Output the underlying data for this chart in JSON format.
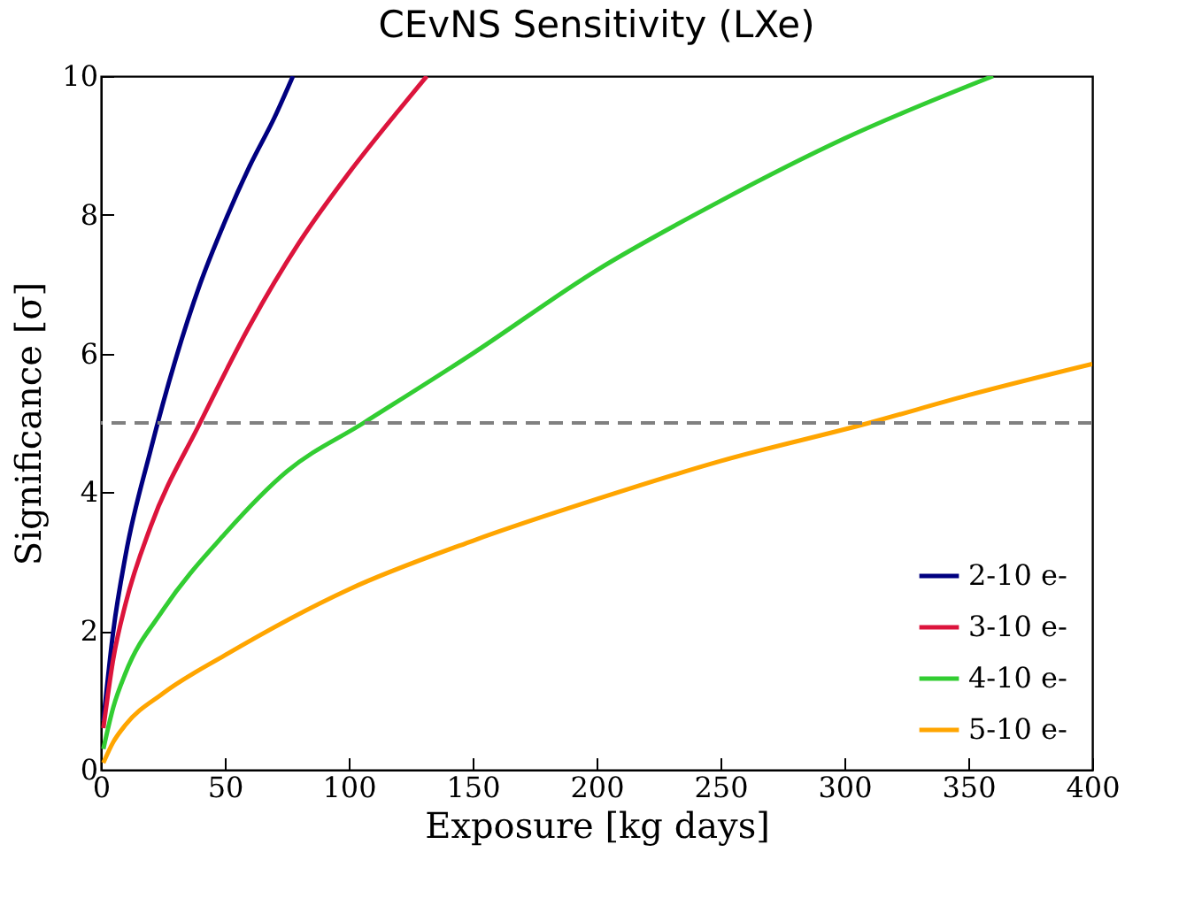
{
  "chart_data": {
    "type": "line",
    "title": "CEvNS Sensitivity (LXe)",
    "xlabel": "Exposure [kg days]",
    "ylabel": "Significance [σ]",
    "xlim": [
      0,
      400
    ],
    "ylim": [
      0,
      10
    ],
    "xticks": [
      0,
      50,
      100,
      150,
      200,
      250,
      300,
      350,
      400
    ],
    "yticks": [
      0,
      2,
      4,
      6,
      8,
      10
    ],
    "grid": false,
    "legend": "bottom right",
    "series": [
      {
        "name": "2-10 e-",
        "color": "#000080",
        "x": [
          1,
          5,
          10,
          20,
          30,
          40,
          50,
          60,
          70,
          77.5
        ],
        "values": [
          0.7,
          2.0,
          3.1,
          4.6,
          5.9,
          7.0,
          7.9,
          8.7,
          9.4,
          10
        ]
      },
      {
        "name": "3-10 e-",
        "color": "#dc143c",
        "x": [
          1,
          5,
          10,
          20,
          40,
          60,
          80,
          100,
          120,
          131.5
        ],
        "values": [
          0.6,
          1.6,
          2.4,
          3.5,
          5.0,
          6.4,
          7.6,
          8.6,
          9.5,
          10
        ]
      },
      {
        "name": "4-10 e-",
        "color": "#32cd32",
        "x": [
          1,
          5,
          10,
          25,
          50,
          75,
          106,
          150,
          200,
          250,
          300,
          360
        ],
        "values": [
          0.3,
          0.9,
          1.4,
          2.3,
          3.4,
          4.3,
          5.0,
          6.0,
          7.2,
          8.2,
          9.1,
          10
        ]
      },
      {
        "name": "5-10 e-",
        "color": "#ffa500",
        "x": [
          1,
          5,
          10,
          25,
          50,
          100,
          150,
          200,
          250,
          310,
          350,
          400
        ],
        "values": [
          0.1,
          0.4,
          0.65,
          1.1,
          1.65,
          2.6,
          3.3,
          3.9,
          4.45,
          5.0,
          5.4,
          5.85
        ]
      }
    ],
    "ref_lines": [
      {
        "axis": "y",
        "value": 5,
        "color": "#808080",
        "line_style": "dashed"
      }
    ]
  }
}
